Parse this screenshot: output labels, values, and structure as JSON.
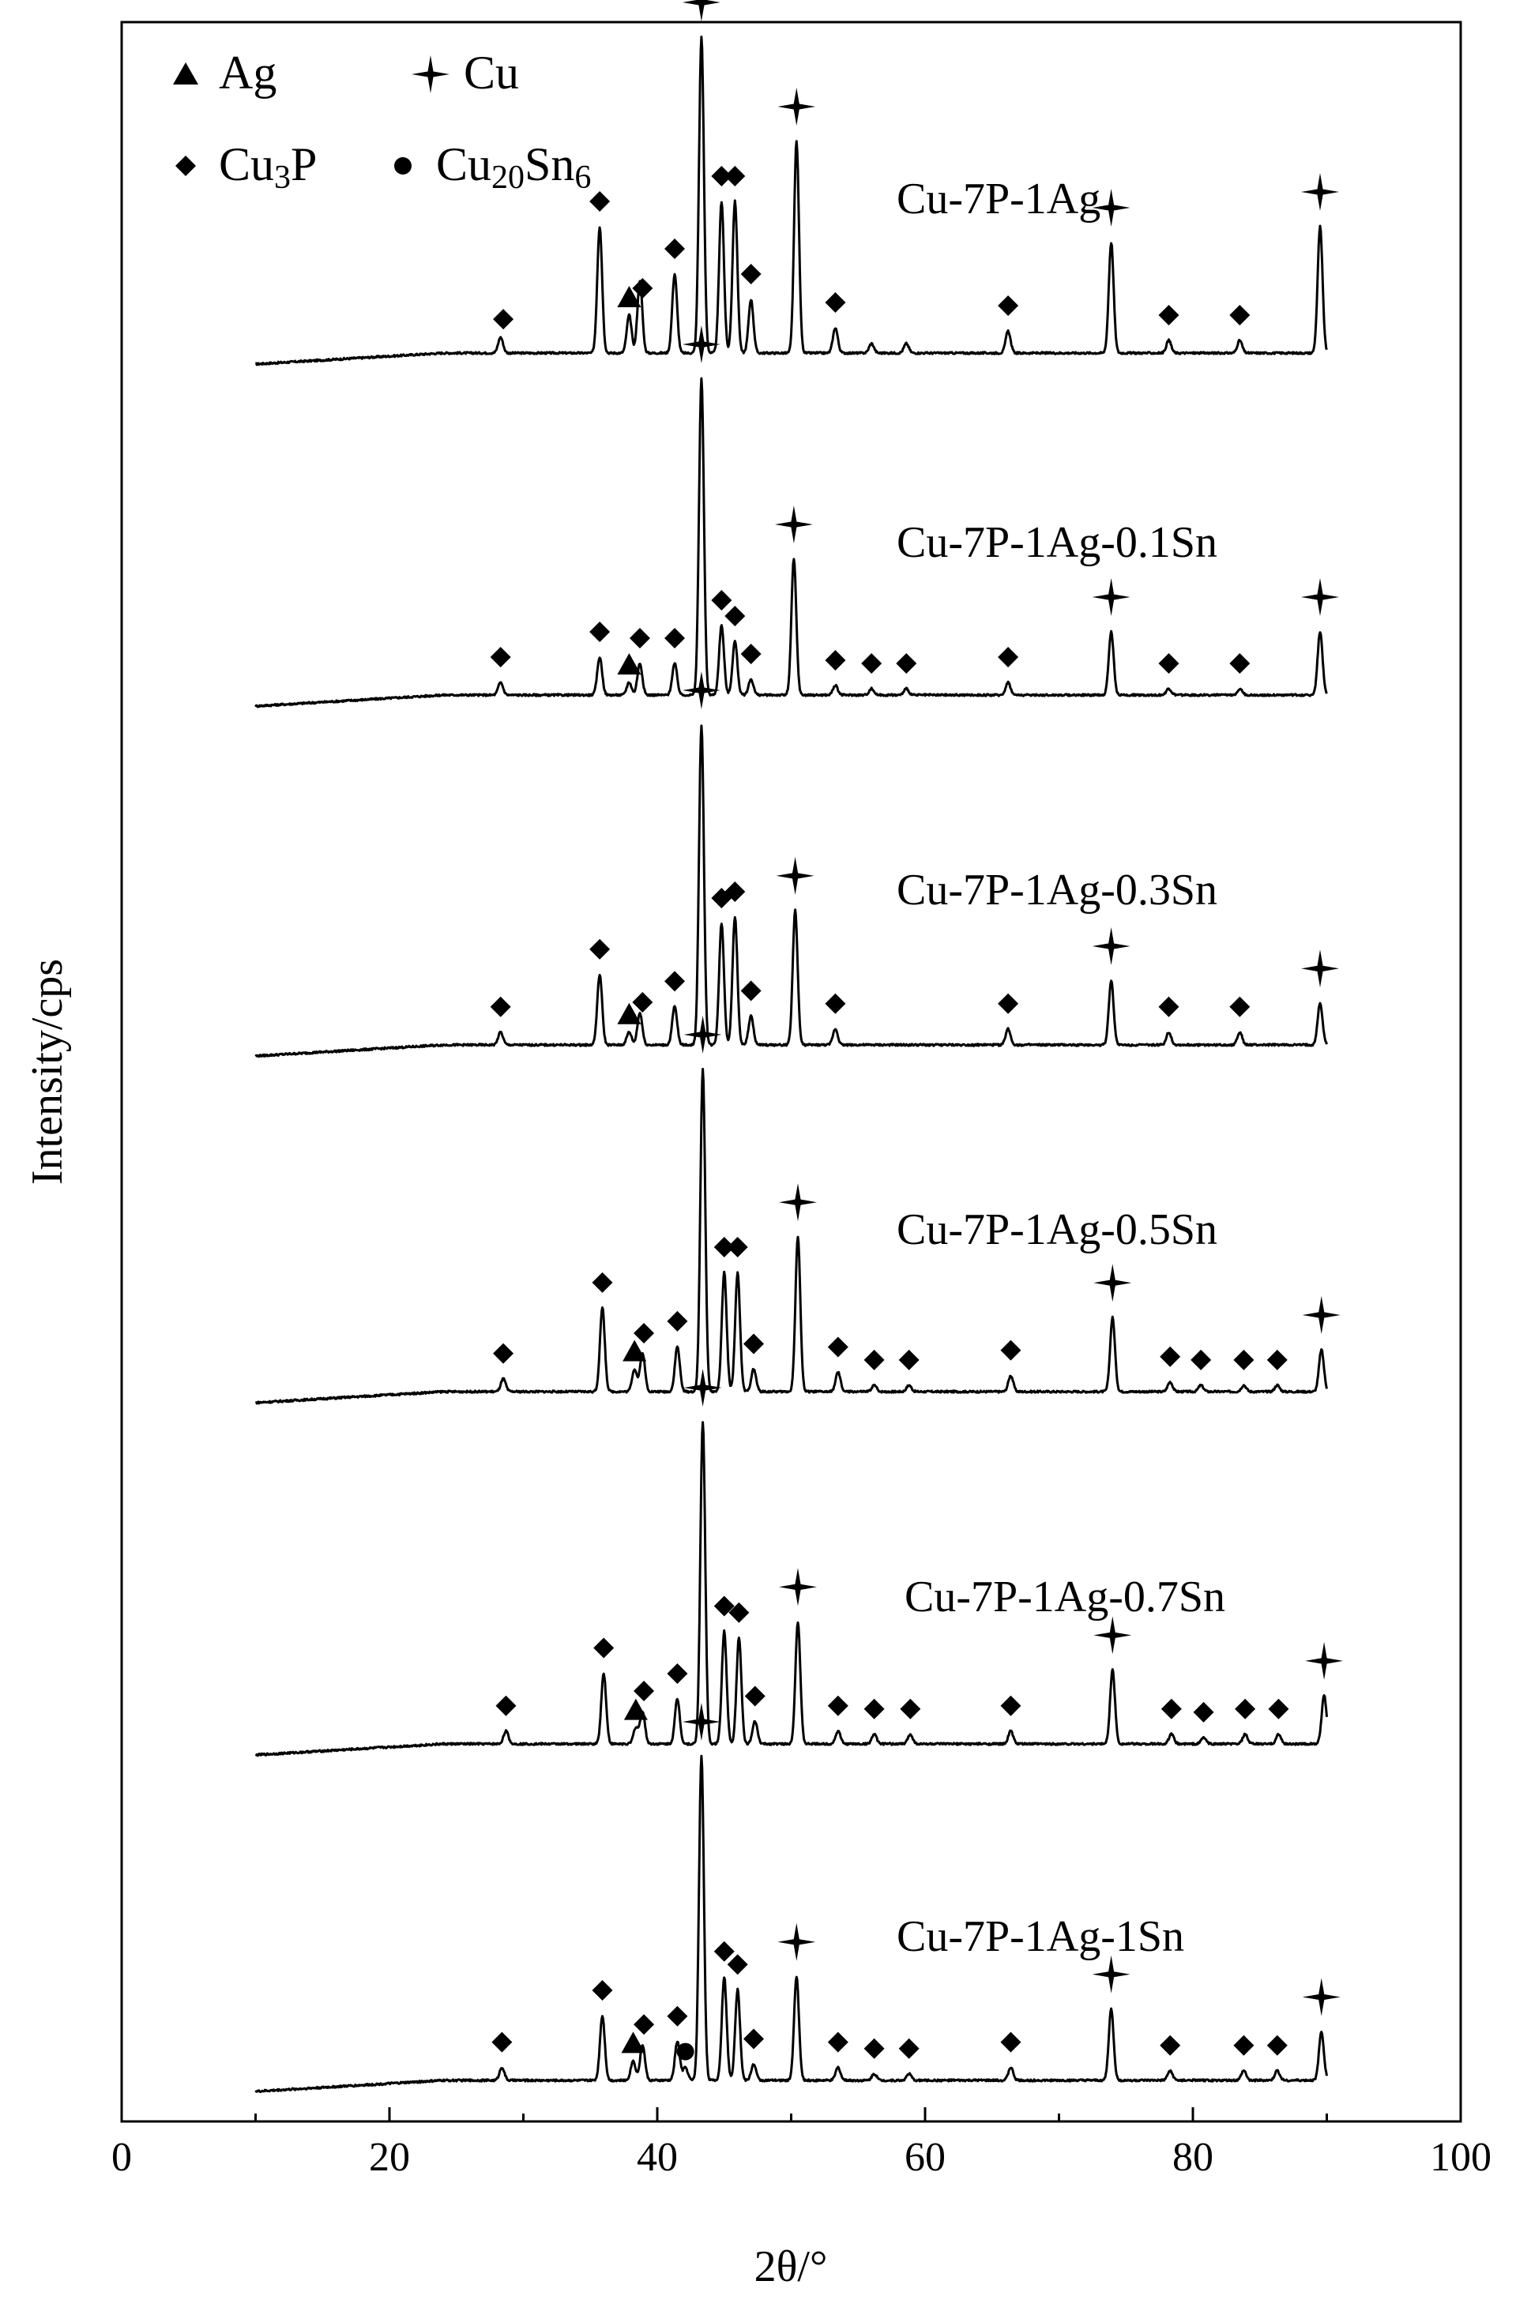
{
  "chart_data": {
    "type": "line",
    "xlabel": "2θ/°",
    "ylabel": "Intensity/cps",
    "xlim": [
      0,
      100
    ],
    "xticks": [
      0,
      20,
      40,
      60,
      80,
      100
    ],
    "grid": false,
    "legend": {
      "placement": "top-left",
      "items": [
        {
          "marker": "triangle",
          "label_main": "Ag",
          "label_sub": "",
          "label_tail": "",
          "label_sub2": ""
        },
        {
          "marker": "star",
          "label_main": "Cu",
          "label_sub": "",
          "label_tail": "",
          "label_sub2": ""
        },
        {
          "marker": "diamond",
          "label_main": "Cu",
          "label_sub": "3",
          "label_tail": "P",
          "label_sub2": ""
        },
        {
          "marker": "circle",
          "label_main": "Cu",
          "label_sub": "20",
          "label_tail": "Sn",
          "label_sub2": "6"
        }
      ]
    },
    "series": [
      {
        "name": "Cu-7P-1Ag",
        "peaks": [
          [
            28.3,
            0.05
          ],
          [
            35.7,
            0.4
          ],
          [
            37.9,
            0.12
          ],
          [
            38.7,
            0.23
          ],
          [
            41.3,
            0.25
          ],
          [
            43.3,
            1.0
          ],
          [
            44.8,
            0.48
          ],
          [
            45.8,
            0.48
          ],
          [
            47.0,
            0.17
          ],
          [
            50.4,
            0.67
          ],
          [
            53.3,
            0.08
          ],
          [
            56.0,
            0.03
          ],
          [
            58.6,
            0.03
          ],
          [
            66.2,
            0.07
          ],
          [
            73.9,
            0.35
          ],
          [
            78.2,
            0.04
          ],
          [
            83.5,
            0.04
          ],
          [
            89.5,
            0.4
          ]
        ],
        "markers": [
          [
            "diamond",
            28.5
          ],
          [
            "diamond",
            35.7
          ],
          [
            "triangle",
            37.9
          ],
          [
            "diamond",
            38.9
          ],
          [
            "diamond",
            41.3
          ],
          [
            "star",
            43.3
          ],
          [
            "diamond",
            44.8
          ],
          [
            "diamond",
            45.8
          ],
          [
            "diamond",
            47.0
          ],
          [
            "star",
            50.4
          ],
          [
            "diamond",
            53.3
          ],
          [
            "diamond",
            66.2
          ],
          [
            "star",
            73.9
          ],
          [
            "diamond",
            78.2
          ],
          [
            "diamond",
            83.5
          ],
          [
            "star",
            89.5
          ]
        ]
      },
      {
        "name": "Cu-7P-1Ag-0.1Sn",
        "peaks": [
          [
            28.3,
            0.04
          ],
          [
            35.7,
            0.12
          ],
          [
            37.9,
            0.04
          ],
          [
            38.7,
            0.1
          ],
          [
            41.3,
            0.1
          ],
          [
            43.3,
            1.0
          ],
          [
            44.8,
            0.22
          ],
          [
            45.8,
            0.17
          ],
          [
            47.0,
            0.05
          ],
          [
            50.2,
            0.43
          ],
          [
            53.3,
            0.03
          ],
          [
            56.0,
            0.02
          ],
          [
            58.6,
            0.02
          ],
          [
            66.2,
            0.04
          ],
          [
            73.9,
            0.2
          ],
          [
            78.2,
            0.02
          ],
          [
            83.5,
            0.02
          ],
          [
            89.5,
            0.2
          ]
        ],
        "markers": [
          [
            "diamond",
            28.3
          ],
          [
            "diamond",
            35.7
          ],
          [
            "triangle",
            37.9
          ],
          [
            "diamond",
            38.7
          ],
          [
            "diamond",
            41.3
          ],
          [
            "star",
            43.3
          ],
          [
            "diamond",
            44.8
          ],
          [
            "diamond",
            45.8
          ],
          [
            "diamond",
            47.0
          ],
          [
            "star",
            50.2
          ],
          [
            "diamond",
            53.3
          ],
          [
            "diamond",
            56.0
          ],
          [
            "diamond",
            58.6
          ],
          [
            "diamond",
            66.2
          ],
          [
            "star",
            73.9
          ],
          [
            "diamond",
            78.2
          ],
          [
            "diamond",
            83.5
          ],
          [
            "star",
            89.5
          ]
        ]
      },
      {
        "name": "Cu-7P-1Ag-0.3Sn",
        "peaks": [
          [
            28.3,
            0.04
          ],
          [
            35.7,
            0.22
          ],
          [
            37.9,
            0.04
          ],
          [
            38.7,
            0.1
          ],
          [
            41.3,
            0.12
          ],
          [
            43.3,
            1.0
          ],
          [
            44.8,
            0.38
          ],
          [
            45.8,
            0.4
          ],
          [
            47.0,
            0.09
          ],
          [
            50.3,
            0.42
          ],
          [
            53.3,
            0.05
          ],
          [
            66.2,
            0.05
          ],
          [
            73.9,
            0.2
          ],
          [
            78.2,
            0.04
          ],
          [
            83.5,
            0.04
          ],
          [
            89.5,
            0.13
          ]
        ],
        "markers": [
          [
            "diamond",
            28.3
          ],
          [
            "diamond",
            35.7
          ],
          [
            "triangle",
            37.9
          ],
          [
            "diamond",
            38.9
          ],
          [
            "diamond",
            41.3
          ],
          [
            "star",
            43.3
          ],
          [
            "diamond",
            44.8
          ],
          [
            "diamond",
            45.8
          ],
          [
            "diamond",
            47.0
          ],
          [
            "star",
            50.3
          ],
          [
            "diamond",
            53.3
          ],
          [
            "diamond",
            66.2
          ],
          [
            "star",
            73.9
          ],
          [
            "diamond",
            78.2
          ],
          [
            "diamond",
            83.5
          ],
          [
            "star",
            89.5
          ]
        ]
      },
      {
        "name": "Cu-7P-1Ag-0.5Sn",
        "peaks": [
          [
            28.5,
            0.04
          ],
          [
            35.9,
            0.26
          ],
          [
            38.3,
            0.07
          ],
          [
            38.9,
            0.12
          ],
          [
            41.5,
            0.14
          ],
          [
            43.4,
            1.0
          ],
          [
            45.0,
            0.37
          ],
          [
            46.0,
            0.37
          ],
          [
            47.2,
            0.07
          ],
          [
            50.5,
            0.48
          ],
          [
            53.5,
            0.06
          ],
          [
            56.2,
            0.02
          ],
          [
            58.8,
            0.02
          ],
          [
            66.4,
            0.05
          ],
          [
            74.0,
            0.23
          ],
          [
            78.3,
            0.03
          ],
          [
            80.6,
            0.02
          ],
          [
            83.8,
            0.02
          ],
          [
            86.3,
            0.02
          ],
          [
            89.6,
            0.13
          ]
        ],
        "markers": [
          [
            "diamond",
            28.5
          ],
          [
            "diamond",
            35.9
          ],
          [
            "triangle",
            38.3
          ],
          [
            "diamond",
            39.0
          ],
          [
            "diamond",
            41.5
          ],
          [
            "star",
            43.4
          ],
          [
            "diamond",
            45.0
          ],
          [
            "diamond",
            46.0
          ],
          [
            "diamond",
            47.2
          ],
          [
            "star",
            50.5
          ],
          [
            "diamond",
            53.5
          ],
          [
            "diamond",
            56.2
          ],
          [
            "diamond",
            58.8
          ],
          [
            "diamond",
            66.4
          ],
          [
            "star",
            74.0
          ],
          [
            "diamond",
            78.3
          ],
          [
            "diamond",
            80.6
          ],
          [
            "diamond",
            83.8
          ],
          [
            "diamond",
            86.3
          ],
          [
            "star",
            89.6
          ]
        ]
      },
      {
        "name": "Cu-7P-1Ag-0.7Sn",
        "peaks": [
          [
            28.7,
            0.04
          ],
          [
            36.0,
            0.22
          ],
          [
            38.4,
            0.05
          ],
          [
            38.9,
            0.1
          ],
          [
            41.5,
            0.14
          ],
          [
            43.4,
            1.0
          ],
          [
            45.0,
            0.35
          ],
          [
            46.1,
            0.33
          ],
          [
            47.3,
            0.07
          ],
          [
            50.5,
            0.38
          ],
          [
            53.5,
            0.04
          ],
          [
            56.2,
            0.03
          ],
          [
            58.9,
            0.03
          ],
          [
            66.4,
            0.04
          ],
          [
            74.0,
            0.23
          ],
          [
            78.4,
            0.03
          ],
          [
            80.8,
            0.02
          ],
          [
            83.9,
            0.03
          ],
          [
            86.4,
            0.03
          ],
          [
            89.8,
            0.15
          ]
        ],
        "markers": [
          [
            "diamond",
            28.7
          ],
          [
            "diamond",
            36.0
          ],
          [
            "triangle",
            38.4
          ],
          [
            "diamond",
            39.0
          ],
          [
            "diamond",
            41.5
          ],
          [
            "star",
            43.4
          ],
          [
            "diamond",
            45.0
          ],
          [
            "diamond",
            46.1
          ],
          [
            "diamond",
            47.3
          ],
          [
            "star",
            50.5
          ],
          [
            "diamond",
            53.5
          ],
          [
            "diamond",
            56.2
          ],
          [
            "diamond",
            58.9
          ],
          [
            "diamond",
            66.4
          ],
          [
            "star",
            74.0
          ],
          [
            "diamond",
            78.4
          ],
          [
            "diamond",
            80.8
          ],
          [
            "diamond",
            83.9
          ],
          [
            "diamond",
            86.4
          ],
          [
            "star",
            89.8
          ]
        ]
      },
      {
        "name": "Cu-7P-1Ag-1Sn",
        "peaks": [
          [
            28.4,
            0.04
          ],
          [
            35.9,
            0.2
          ],
          [
            38.2,
            0.06
          ],
          [
            38.9,
            0.11
          ],
          [
            41.5,
            0.12
          ],
          [
            42.1,
            0.04
          ],
          [
            43.3,
            1.0
          ],
          [
            45.0,
            0.32
          ],
          [
            46.0,
            0.28
          ],
          [
            47.2,
            0.05
          ],
          [
            50.4,
            0.32
          ],
          [
            53.5,
            0.04
          ],
          [
            56.2,
            0.02
          ],
          [
            58.8,
            0.02
          ],
          [
            66.4,
            0.04
          ],
          [
            73.9,
            0.22
          ],
          [
            78.3,
            0.03
          ],
          [
            83.8,
            0.03
          ],
          [
            86.3,
            0.03
          ],
          [
            89.6,
            0.15
          ]
        ],
        "markers": [
          [
            "diamond",
            28.4
          ],
          [
            "diamond",
            35.9
          ],
          [
            "triangle",
            38.2
          ],
          [
            "diamond",
            39.0
          ],
          [
            "diamond",
            41.5
          ],
          [
            "circle",
            42.1
          ],
          [
            "star",
            43.3
          ],
          [
            "diamond",
            45.0
          ],
          [
            "diamond",
            46.0
          ],
          [
            "diamond",
            47.2
          ],
          [
            "star",
            50.4
          ],
          [
            "diamond",
            53.5
          ],
          [
            "diamond",
            56.2
          ],
          [
            "diamond",
            58.8
          ],
          [
            "diamond",
            66.4
          ],
          [
            "star",
            73.9
          ],
          [
            "diamond",
            78.3
          ],
          [
            "diamond",
            83.8
          ],
          [
            "diamond",
            86.3
          ],
          [
            "star",
            89.6
          ]
        ]
      }
    ]
  }
}
